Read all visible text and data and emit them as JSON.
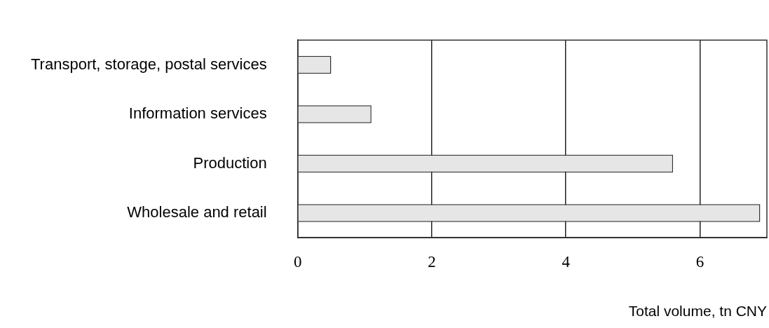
{
  "chart_data": {
    "type": "bar",
    "orientation": "horizontal",
    "xlabel": "Total volume, tn CNY",
    "categories": [
      "Transport, storage, postal services",
      "Information services",
      "Production",
      "Wholesale and retail"
    ],
    "values": [
      0.5,
      1.1,
      5.6,
      6.9
    ],
    "color": "#e6e6e6",
    "xlim": [
      0,
      7
    ],
    "xticks": [
      0,
      2,
      4,
      6
    ],
    "grid": "x",
    "legend": false
  }
}
